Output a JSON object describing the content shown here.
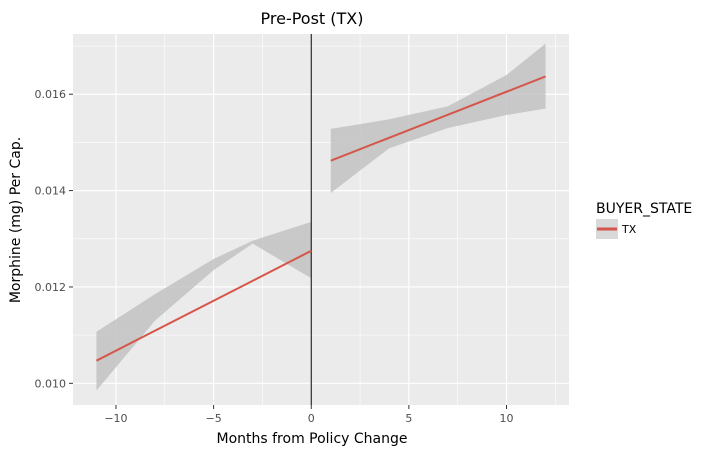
{
  "chart_data": {
    "type": "line",
    "title": "Pre-Post (TX)",
    "xlabel": "Months from Policy Change",
    "ylabel": "Morphine (mg) Per Cap.",
    "xlim": [
      -12.2,
      13.2
    ],
    "ylim": [
      0.00955,
      0.01725
    ],
    "x_ticks": [
      -10,
      -5,
      0,
      5,
      10
    ],
    "x_tick_labels": [
      "−10",
      "−5",
      "0",
      "5",
      "10"
    ],
    "y_ticks": [
      0.01,
      0.012,
      0.014,
      0.016
    ],
    "y_tick_labels": [
      "0.010",
      "0.012",
      "0.014",
      "0.016"
    ],
    "grid": true,
    "vline": 0,
    "legend": {
      "title": "BUYER_STATE",
      "position": "right",
      "entries": [
        "TX"
      ]
    },
    "colors": {
      "line": "#d5574b",
      "band": "#bfbfbf",
      "panel": "#ebebeb",
      "grid": "#ffffff",
      "vline": "#000000"
    },
    "series": [
      {
        "name": "TX",
        "segments": [
          {
            "x": [
              -11,
              0
            ],
            "y": [
              0.01047,
              0.01275
            ],
            "band": {
              "x": [
                -11,
                -8,
                -5,
                -3,
                0
              ],
              "lower": [
                0.00985,
                0.0113,
                0.01235,
                0.0129,
                0.01218
              ],
              "upper": [
                0.01107,
                0.01185,
                0.01258,
                0.01296,
                0.01335
              ]
            }
          },
          {
            "x": [
              1,
              12
            ],
            "y": [
              0.01462,
              0.01637
            ],
            "band": {
              "x": [
                1,
                4,
                7,
                10,
                12
              ],
              "lower": [
                0.01395,
                0.01488,
                0.0153,
                0.01557,
                0.0157
              ],
              "upper": [
                0.01528,
                0.01548,
                0.01575,
                0.0164,
                0.01705
              ]
            }
          }
        ]
      }
    ]
  }
}
